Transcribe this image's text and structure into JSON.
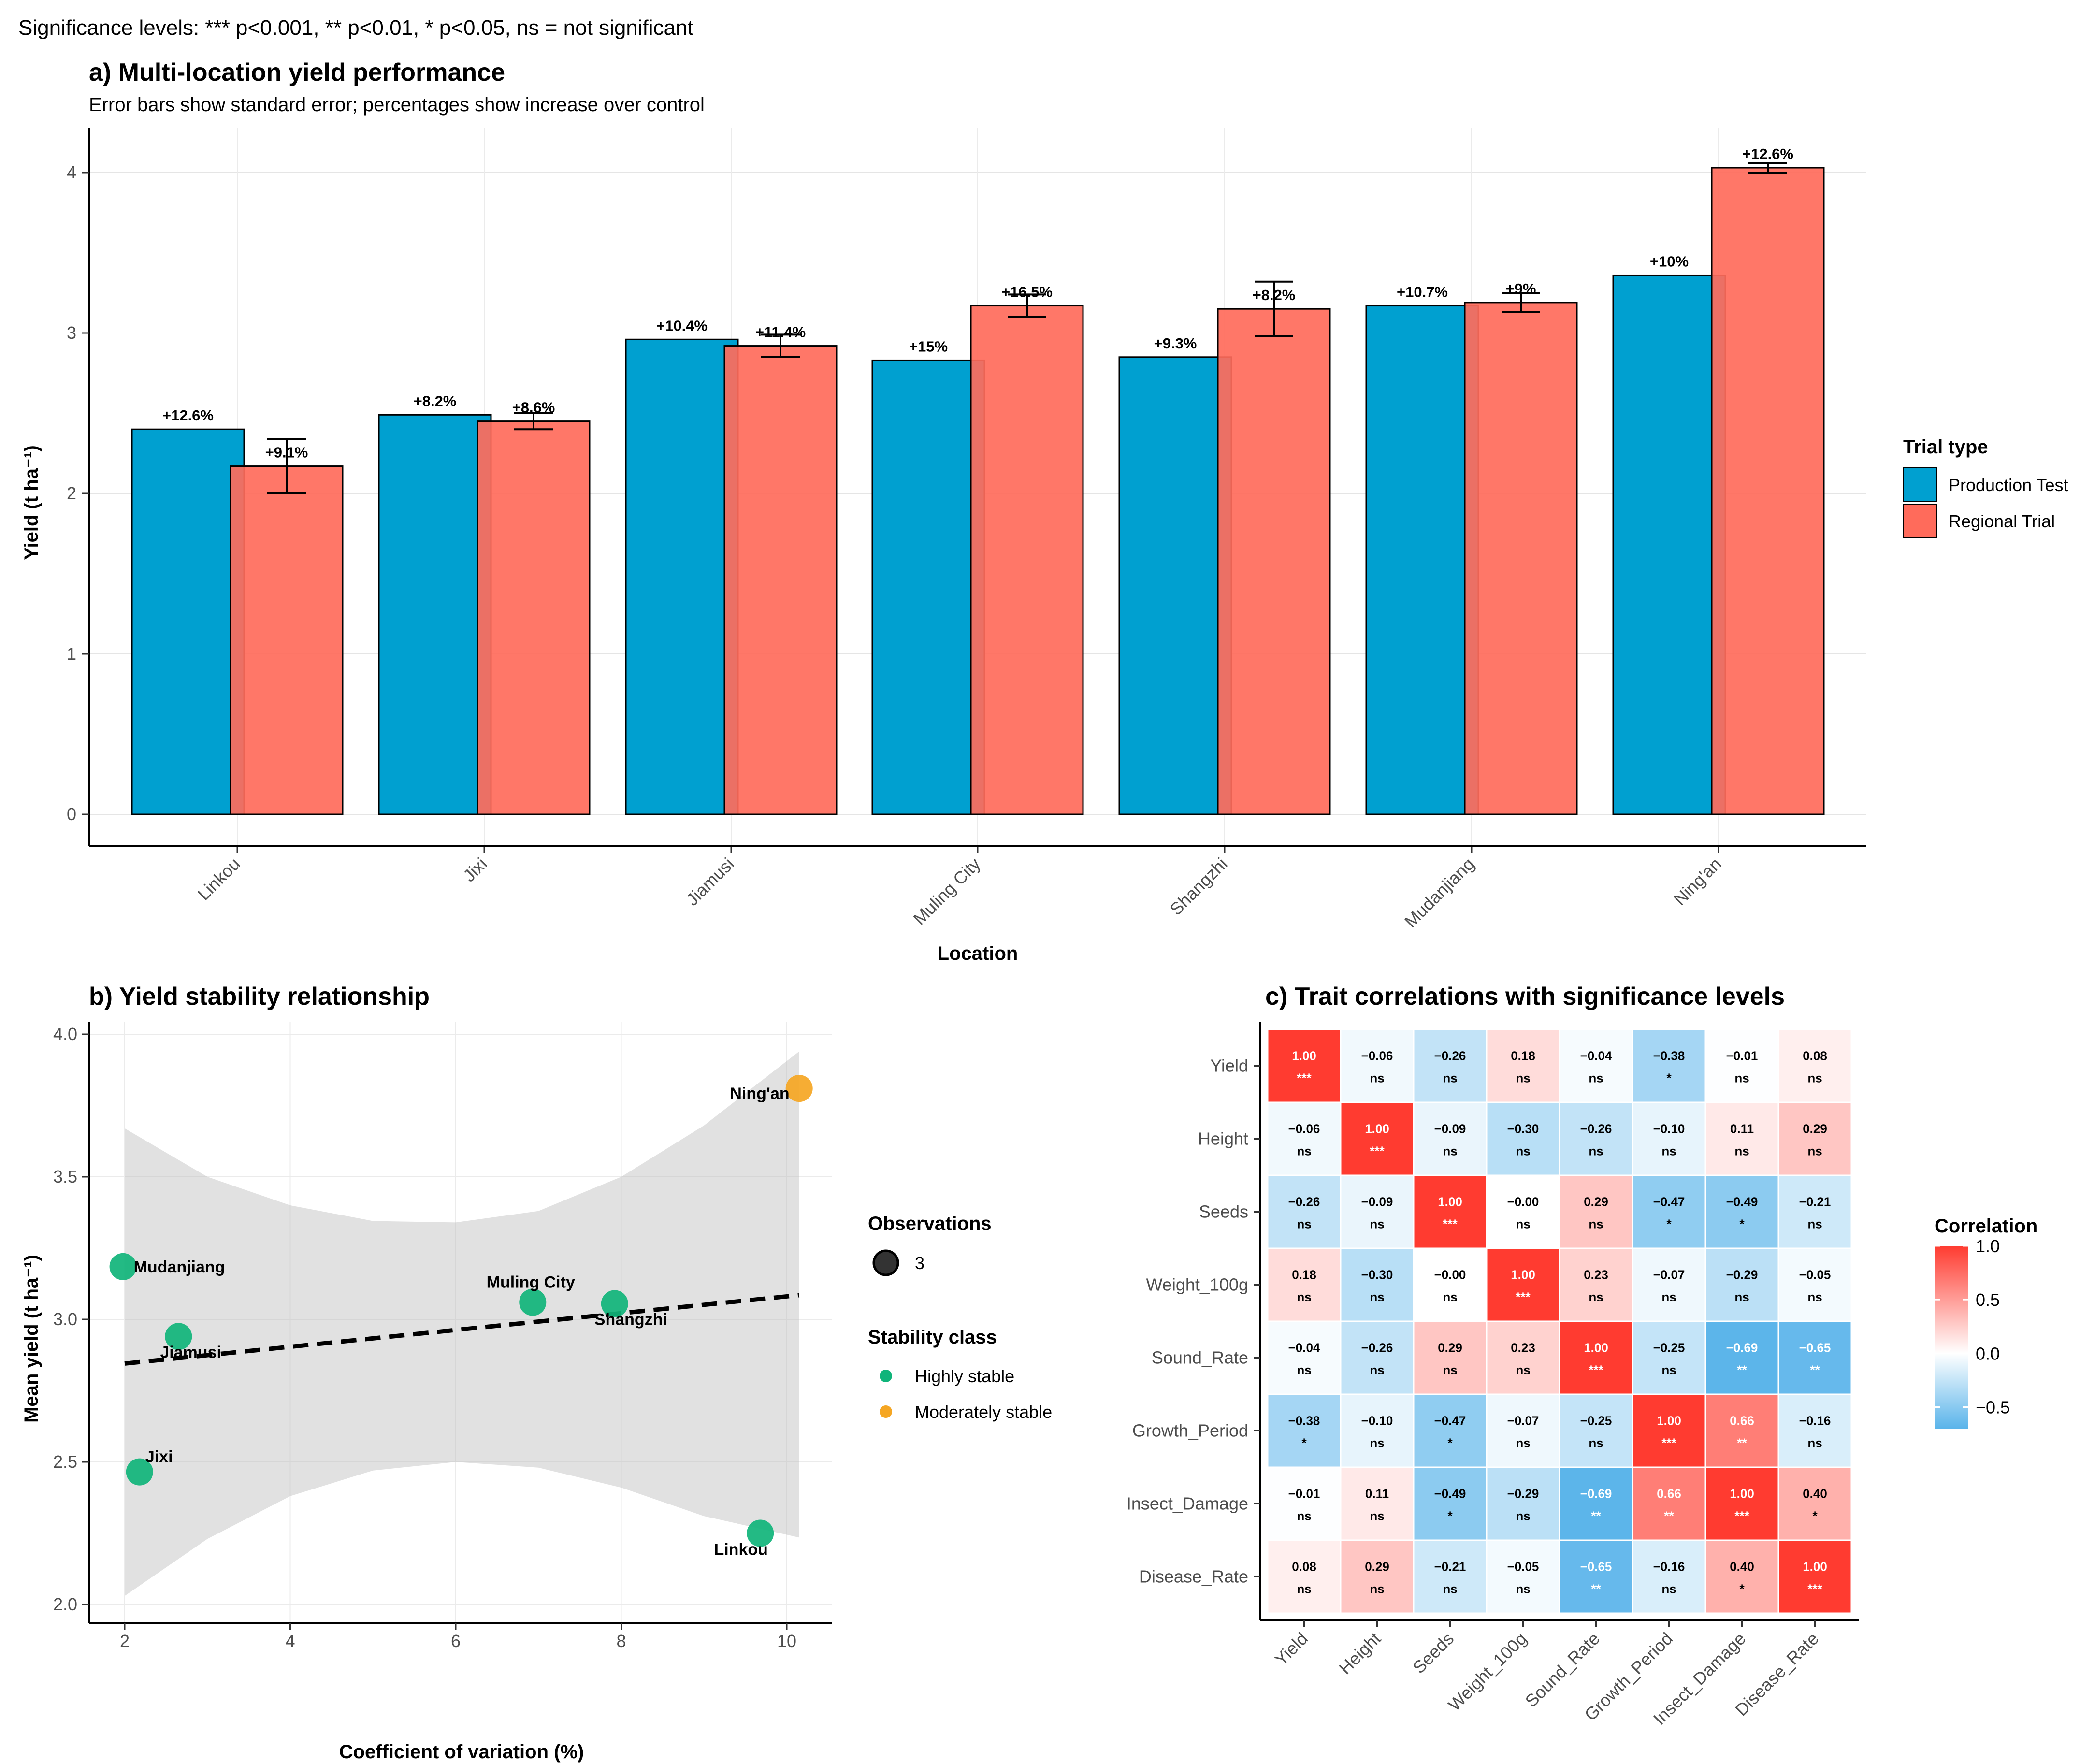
{
  "caption": "Significance levels: *** p<0.001, ** p<0.01, * p<0.05, ns = not significant",
  "chart_data": [
    {
      "panel": "a",
      "type": "bar",
      "title": "a) Multi-location yield performance",
      "subtitle": "Error bars show standard error; percentages show increase over control",
      "xlabel": "Location",
      "ylabel": "Yield (t ha⁻¹)",
      "ylim": [
        0,
        4.2
      ],
      "yticks": [
        0,
        1,
        2,
        3,
        4
      ],
      "categories": [
        "Linkou",
        "Jixi",
        "Jiamusi",
        "Muling City",
        "Shangzhi",
        "Mudanjiang",
        "Ning'an"
      ],
      "legend_title": "Trial type",
      "legend_position": "right",
      "series": [
        {
          "name": "Production Test",
          "color": "#00a0d0",
          "values": [
            2.4,
            2.49,
            2.96,
            2.83,
            2.85,
            3.17,
            3.36
          ],
          "labels": [
            "+12.6%",
            "+8.2%",
            "+10.4%",
            "+15%",
            "+9.3%",
            "+10.7%",
            "+10%"
          ]
        },
        {
          "name": "Regional Trial",
          "color": "#ff6b5b",
          "values": [
            2.17,
            2.45,
            2.92,
            3.17,
            3.15,
            3.19,
            4.03
          ],
          "se": [
            0.17,
            0.05,
            0.07,
            0.07,
            0.17,
            0.06,
            0.03
          ],
          "labels": [
            "+9.1%",
            "+8.6%",
            "+11.4%",
            "+16.5%",
            "+8.2%",
            "+9%",
            "+12.6%"
          ]
        }
      ]
    },
    {
      "panel": "b",
      "type": "scatter",
      "title": "b) Yield stability relationship",
      "xlabel": "Coefficient of variation (%)",
      "ylabel": "Mean yield (t ha⁻¹)",
      "xlim": [
        1.6,
        10.6
      ],
      "ylim": [
        1.95,
        4.03
      ],
      "xticks": [
        2,
        4,
        6,
        8,
        10
      ],
      "yticks": [
        2.0,
        2.5,
        3.0,
        3.5,
        4.0
      ],
      "points": [
        {
          "name": "Mudanjiang",
          "x": 1.98,
          "y": 3.185,
          "class": "Highly stable"
        },
        {
          "name": "Jiamusi",
          "x": 2.65,
          "y": 2.94,
          "class": "Highly stable"
        },
        {
          "name": "Jixi",
          "x": 2.18,
          "y": 2.465,
          "class": "Highly stable"
        },
        {
          "name": "Muling City",
          "x": 6.93,
          "y": 3.06,
          "class": "Highly stable"
        },
        {
          "name": "Shangzhi",
          "x": 7.92,
          "y": 3.055,
          "class": "Highly stable"
        },
        {
          "name": "Linkou",
          "x": 9.68,
          "y": 2.25,
          "class": "Highly stable"
        },
        {
          "name": "Ning'an",
          "x": 10.15,
          "y": 3.81,
          "class": "Moderately stable"
        }
      ],
      "trend": {
        "x": [
          2.0,
          10.15
        ],
        "y": [
          2.845,
          3.085
        ]
      },
      "ci_band": {
        "x": [
          2.0,
          3.0,
          4.0,
          5.0,
          6.0,
          7.0,
          8.0,
          9.0,
          10.15
        ],
        "upper": [
          3.67,
          3.5,
          3.4,
          3.345,
          3.34,
          3.38,
          3.5,
          3.68,
          3.94
        ],
        "lower": [
          2.03,
          2.23,
          2.38,
          2.47,
          2.5,
          2.48,
          2.41,
          2.31,
          2.235
        ]
      },
      "legend_size_title": "Observations",
      "legend_size_value": "3",
      "legend_class_title": "Stability class",
      "classes": [
        {
          "name": "Highly stable",
          "color": "#10b47a"
        },
        {
          "name": "Moderately stable",
          "color": "#f5a623"
        }
      ]
    },
    {
      "panel": "c",
      "type": "heatmap",
      "title": "c) Trait correlations with significance levels",
      "traits": [
        "Yield",
        "Height",
        "Seeds",
        "Weight_100g",
        "Sound_Rate",
        "Growth_Period",
        "Insect_Damage",
        "Disease_Rate"
      ],
      "matrix": [
        [
          1.0,
          -0.06,
          -0.26,
          0.18,
          -0.04,
          -0.38,
          -0.01,
          0.08
        ],
        [
          -0.06,
          1.0,
          -0.09,
          -0.3,
          -0.26,
          -0.1,
          0.11,
          0.29
        ],
        [
          -0.26,
          -0.09,
          1.0,
          -0.0,
          0.29,
          -0.47,
          -0.49,
          -0.21
        ],
        [
          0.18,
          -0.3,
          -0.0,
          1.0,
          0.23,
          -0.07,
          -0.29,
          -0.05
        ],
        [
          -0.04,
          -0.26,
          0.29,
          0.23,
          1.0,
          -0.25,
          -0.69,
          -0.65
        ],
        [
          -0.38,
          -0.1,
          -0.47,
          -0.07,
          -0.25,
          1.0,
          0.66,
          -0.16
        ],
        [
          -0.01,
          0.11,
          -0.49,
          -0.29,
          -0.69,
          0.66,
          1.0,
          0.4
        ],
        [
          0.08,
          0.29,
          -0.21,
          -0.05,
          -0.65,
          -0.16,
          0.4,
          1.0
        ]
      ],
      "display": [
        [
          "1.00",
          "−0.06",
          "−0.26",
          "0.18",
          "−0.04",
          "−0.38",
          "−0.01",
          "0.08"
        ],
        [
          "−0.06",
          "1.00",
          "−0.09",
          "−0.30",
          "−0.26",
          "−0.10",
          "0.11",
          "0.29"
        ],
        [
          "−0.26",
          "−0.09",
          "1.00",
          "−0.00",
          "0.29",
          "−0.47",
          "−0.49",
          "−0.21"
        ],
        [
          "0.18",
          "−0.30",
          "−0.00",
          "1.00",
          "0.23",
          "−0.07",
          "−0.29",
          "−0.05"
        ],
        [
          "−0.04",
          "−0.26",
          "0.29",
          "0.23",
          "1.00",
          "−0.25",
          "−0.69",
          "−0.65"
        ],
        [
          "−0.38",
          "−0.10",
          "−0.47",
          "−0.07",
          "−0.25",
          "1.00",
          "0.66",
          "−0.16"
        ],
        [
          "−0.01",
          "0.11",
          "−0.49",
          "−0.29",
          "−0.69",
          "0.66",
          "1.00",
          "0.40"
        ],
        [
          "0.08",
          "0.29",
          "−0.21",
          "−0.05",
          "−0.65",
          "−0.16",
          "0.40",
          "1.00"
        ]
      ],
      "sig": [
        [
          "***",
          "ns",
          "ns",
          "ns",
          "ns",
          "*",
          "ns",
          "ns"
        ],
        [
          "ns",
          "***",
          "ns",
          "ns",
          "ns",
          "ns",
          "ns",
          "ns"
        ],
        [
          "ns",
          "ns",
          "***",
          "ns",
          "ns",
          "*",
          "*",
          "ns"
        ],
        [
          "ns",
          "ns",
          "ns",
          "***",
          "ns",
          "ns",
          "ns",
          "ns"
        ],
        [
          "ns",
          "ns",
          "ns",
          "ns",
          "***",
          "ns",
          "**",
          "**"
        ],
        [
          "*",
          "ns",
          "*",
          "ns",
          "ns",
          "***",
          "**",
          "ns"
        ],
        [
          "ns",
          "ns",
          "*",
          "ns",
          "**",
          "**",
          "***",
          "*"
        ],
        [
          "ns",
          "ns",
          "ns",
          "ns",
          "**",
          "ns",
          "*",
          "***"
        ]
      ],
      "legend_title": "Correlation",
      "legend_range": [
        -0.7,
        1.0
      ],
      "legend_ticks": [
        "1.0",
        "0.5",
        "0.0",
        "−0.5"
      ],
      "legend_tick_values": [
        1.0,
        0.5,
        0.0,
        -0.5
      ],
      "colors": {
        "low": "#5ab4ea",
        "mid": "#ffffff",
        "high": "#ff3b30"
      }
    }
  ]
}
